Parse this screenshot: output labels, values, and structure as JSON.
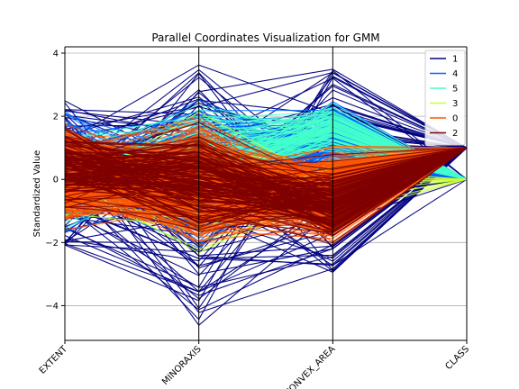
{
  "chart_data": {
    "type": "line",
    "title": "Parallel Coordinates Visualization for GMM",
    "xlabel": "",
    "ylabel": "Standardized Value",
    "axes": [
      "EXTENT",
      "MINORAXIS",
      "CONVEX_AREA",
      "CLASS"
    ],
    "ylim": [
      -5.1,
      4.2
    ],
    "yticks": [
      -4,
      -2,
      0,
      2,
      4
    ],
    "grid": true,
    "legend_position": "top-right",
    "series": [
      {
        "name": "1",
        "color": "#00007f",
        "EXTENT": [
          -2.1,
          2.0,
          0.5,
          -1.2
        ],
        "MINORAXIS": [
          2.2,
          3.0,
          -2.8,
          1.6
        ],
        "CONVEX_AREA": [
          2.9,
          -1.9,
          2.2,
          -0.8
        ],
        "CLASS": [
          1.0,
          1.0,
          1.0,
          1.0
        ],
        "ranges": {
          "EXTENT": [
            -2.1,
            2.5
          ],
          "MINORAXIS": [
            -4.7,
            3.7
          ],
          "CONVEX_AREA": [
            -3.0,
            3.5
          ],
          "CLASS": [
            0.0,
            1.0
          ]
        }
      },
      {
        "name": "4",
        "color": "#0066ff",
        "ranges": {
          "EXTENT": [
            -2.0,
            2.6
          ],
          "MINORAXIS": [
            -2.9,
            3.0
          ],
          "CONVEX_AREA": [
            0.0,
            2.9
          ],
          "CLASS": [
            0.0,
            0.0
          ]
        }
      },
      {
        "name": "5",
        "color": "#44ffcc",
        "ranges": {
          "EXTENT": [
            -1.9,
            2.0
          ],
          "MINORAXIS": [
            -1.8,
            2.8
          ],
          "CONVEX_AREA": [
            0.6,
            2.7
          ],
          "CLASS": [
            0.0,
            0.0
          ]
        }
      },
      {
        "name": "3",
        "color": "#ccff33",
        "ranges": {
          "EXTENT": [
            -1.6,
            2.0
          ],
          "MINORAXIS": [
            -2.9,
            2.4
          ],
          "CONVEX_AREA": [
            -1.8,
            1.3
          ],
          "CLASS": [
            0.0,
            1.0
          ]
        }
      },
      {
        "name": "0",
        "color": "#ff5500",
        "ranges": {
          "EXTENT": [
            -1.8,
            2.1
          ],
          "MINORAXIS": [
            -2.5,
            2.3
          ],
          "CONVEX_AREA": [
            -2.4,
            1.2
          ],
          "CLASS": [
            1.0,
            1.0
          ]
        }
      },
      {
        "name": "2",
        "color": "#7f0000",
        "ranges": {
          "EXTENT": [
            -1.3,
            2.1
          ],
          "MINORAXIS": [
            -2.5,
            2.5
          ],
          "CONVEX_AREA": [
            -2.5,
            1.0
          ],
          "CLASS": [
            1.0,
            1.0
          ]
        }
      }
    ],
    "draw_order": [
      "1",
      "4",
      "5",
      "3",
      "0",
      "2"
    ]
  }
}
